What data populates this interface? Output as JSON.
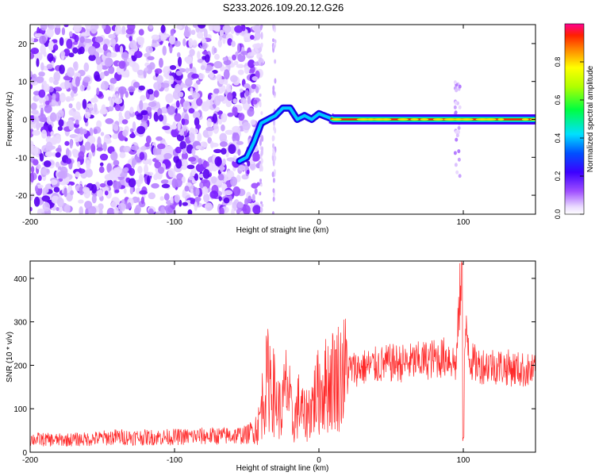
{
  "figure_title": "S233.2026.109.20.12.G26",
  "chart_data": [
    {
      "type": "heatmap",
      "title": "S233.2026.109.20.12.G26",
      "xlabel": "Height of straight line (km)",
      "ylabel": "Frequency (Hz)",
      "xlim": [
        -200,
        150
      ],
      "ylim": [
        -25,
        25
      ],
      "xticks": [
        -200,
        -100,
        0,
        100
      ],
      "yticks": [
        -20,
        -10,
        0,
        10,
        20
      ],
      "colorbar": {
        "label": "Normalized spectral amplitude",
        "range": [
          0,
          1
        ],
        "ticks": [
          "0.0",
          "0.2",
          "0.4",
          "0.6",
          "0.8"
        ],
        "tick_values": [
          0.0,
          0.2,
          0.4,
          0.6,
          0.8
        ]
      },
      "ridge": {
        "description": "dominant frequency track",
        "x": [
          -55,
          -50,
          -45,
          -40,
          -35,
          -30,
          -25,
          -20,
          -15,
          -10,
          -5,
          0,
          10,
          50,
          90,
          100,
          150
        ],
        "y": [
          -11,
          -10,
          -6,
          -1,
          0,
          1,
          3,
          3,
          0,
          1,
          0,
          1.5,
          0,
          0,
          0,
          0,
          0
        ]
      },
      "noise_region_x": [
        -200,
        -40
      ]
    },
    {
      "type": "line",
      "xlabel": "Height of straight line (km)",
      "ylabel": "SNR (10 * v/v)",
      "xlim": [
        -200,
        150
      ],
      "ylim": [
        0,
        440
      ],
      "xticks": [
        -200,
        -100,
        0,
        100
      ],
      "yticks": [
        0,
        100,
        200,
        300,
        400
      ],
      "series": [
        {
          "name": "SNR",
          "color": "#ff2a2a",
          "x": [
            -200,
            -180,
            -160,
            -140,
            -120,
            -100,
            -80,
            -60,
            -50,
            -42,
            -38,
            -34,
            -30,
            -26,
            -22,
            -18,
            -14,
            -10,
            -6,
            -2,
            0,
            10,
            20,
            30,
            40,
            50,
            60,
            70,
            80,
            90,
            95,
            98,
            100,
            102,
            105,
            110,
            120,
            130,
            140,
            150
          ],
          "y": [
            30,
            28,
            30,
            35,
            34,
            35,
            37,
            38,
            40,
            60,
            140,
            180,
            120,
            90,
            160,
            60,
            110,
            80,
            100,
            130,
            140,
            170,
            190,
            195,
            200,
            205,
            205,
            210,
            215,
            220,
            200,
            380,
            100,
            300,
            210,
            200,
            200,
            195,
            190,
            185
          ]
        }
      ]
    }
  ]
}
